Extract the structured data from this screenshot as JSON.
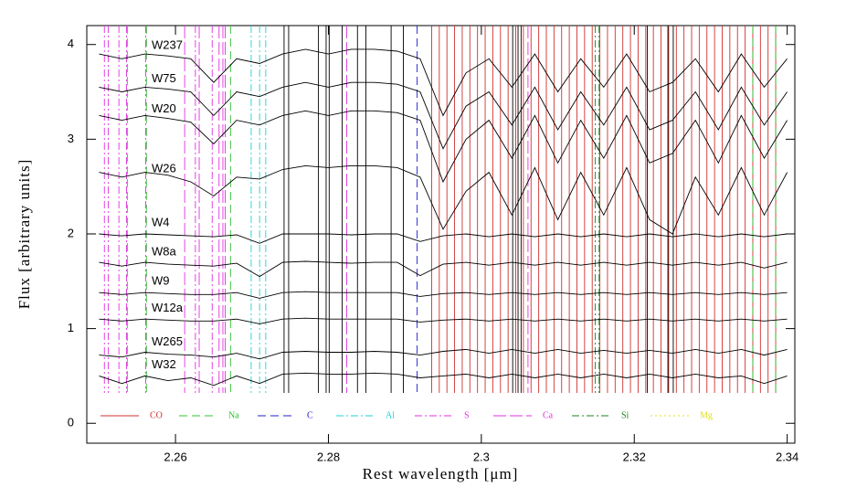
{
  "chart_data": {
    "type": "line",
    "xlabel": "Rest wavelength [μm]",
    "ylabel": "Flux [arbitrary units]",
    "xlim": [
      2.2484,
      2.341
    ],
    "ylim": [
      -0.21,
      4.2
    ],
    "xticks": [
      2.26,
      2.28,
      2.3,
      2.32,
      2.34
    ],
    "yticks": [
      0,
      1,
      2,
      3,
      4
    ],
    "x": [
      2.25,
      2.253,
      2.256,
      2.259,
      2.262,
      2.265,
      2.268,
      2.271,
      2.274,
      2.277,
      2.28,
      2.283,
      2.286,
      2.289,
      2.292,
      2.295,
      2.298,
      2.301,
      2.304,
      2.307,
      2.31,
      2.313,
      2.316,
      2.319,
      2.322,
      2.325,
      2.328,
      2.331,
      2.334,
      2.337,
      2.34
    ],
    "series": [
      {
        "name": "W237",
        "color": "#000000",
        "values": [
          3.9,
          3.85,
          3.9,
          3.88,
          3.85,
          3.6,
          3.85,
          3.8,
          3.9,
          3.95,
          3.9,
          3.95,
          3.95,
          3.93,
          3.85,
          3.25,
          3.7,
          3.85,
          3.55,
          3.9,
          3.5,
          3.85,
          3.55,
          3.9,
          3.5,
          3.6,
          3.85,
          3.5,
          3.9,
          3.55,
          3.85
        ]
      },
      {
        "name": "W75",
        "color": "#000000",
        "values": [
          3.55,
          3.5,
          3.55,
          3.53,
          3.5,
          3.25,
          3.5,
          3.45,
          3.55,
          3.6,
          3.55,
          3.6,
          3.6,
          3.58,
          3.5,
          2.9,
          3.35,
          3.5,
          3.15,
          3.55,
          3.1,
          3.5,
          3.15,
          3.55,
          3.1,
          3.2,
          3.5,
          3.1,
          3.55,
          3.15,
          3.5
        ]
      },
      {
        "name": "W20",
        "color": "#000000",
        "values": [
          3.25,
          3.2,
          3.25,
          3.22,
          3.18,
          2.95,
          3.2,
          3.15,
          3.25,
          3.3,
          3.25,
          3.3,
          3.3,
          3.28,
          3.2,
          2.55,
          3.0,
          3.2,
          2.8,
          3.25,
          2.75,
          3.2,
          2.8,
          3.25,
          2.75,
          2.85,
          3.2,
          2.75,
          3.25,
          2.8,
          3.2
        ]
      },
      {
        "name": "W26",
        "color": "#000000",
        "values": [
          2.65,
          2.6,
          2.65,
          2.62,
          2.55,
          2.4,
          2.6,
          2.58,
          2.68,
          2.72,
          2.7,
          2.72,
          2.72,
          2.7,
          2.6,
          2.05,
          2.45,
          2.65,
          2.2,
          2.7,
          2.15,
          2.65,
          2.2,
          2.7,
          2.15,
          2.0,
          2.6,
          2.2,
          2.7,
          2.2,
          2.65
        ]
      },
      {
        "name": "W4",
        "color": "#000000",
        "values": [
          2.0,
          1.98,
          2.0,
          1.99,
          1.98,
          1.97,
          1.99,
          1.9,
          2.0,
          2.0,
          2.0,
          1.99,
          2.0,
          2.0,
          1.92,
          1.98,
          2.0,
          1.97,
          2.0,
          1.97,
          2.0,
          1.97,
          2.0,
          1.97,
          2.0,
          1.97,
          2.0,
          1.97,
          2.0,
          1.97,
          2.0
        ]
      },
      {
        "name": "W8a",
        "color": "#000000",
        "values": [
          1.7,
          1.66,
          1.7,
          1.68,
          1.67,
          1.66,
          1.69,
          1.55,
          1.7,
          1.71,
          1.7,
          1.69,
          1.7,
          1.7,
          1.56,
          1.68,
          1.7,
          1.67,
          1.7,
          1.67,
          1.7,
          1.67,
          1.7,
          1.67,
          1.7,
          1.67,
          1.7,
          1.67,
          1.7,
          1.64,
          1.7
        ]
      },
      {
        "name": "W9",
        "color": "#000000",
        "values": [
          1.38,
          1.36,
          1.38,
          1.37,
          1.36,
          1.36,
          1.38,
          1.32,
          1.38,
          1.39,
          1.38,
          1.38,
          1.38,
          1.38,
          1.34,
          1.37,
          1.38,
          1.36,
          1.38,
          1.36,
          1.38,
          1.36,
          1.38,
          1.36,
          1.38,
          1.36,
          1.38,
          1.36,
          1.38,
          1.36,
          1.38
        ]
      },
      {
        "name": "W12a",
        "color": "#000000",
        "values": [
          1.1,
          1.08,
          1.1,
          1.09,
          1.08,
          1.08,
          1.1,
          1.05,
          1.1,
          1.11,
          1.1,
          1.1,
          1.1,
          1.1,
          1.07,
          1.09,
          1.1,
          1.08,
          1.1,
          1.08,
          1.1,
          1.08,
          1.1,
          1.08,
          1.1,
          1.08,
          1.1,
          1.08,
          1.1,
          1.08,
          1.1
        ]
      },
      {
        "name": "W265",
        "color": "#000000",
        "values": [
          0.72,
          0.7,
          0.75,
          0.73,
          0.72,
          0.7,
          0.74,
          0.68,
          0.75,
          0.76,
          0.75,
          0.75,
          0.76,
          0.75,
          0.72,
          0.76,
          0.78,
          0.74,
          0.78,
          0.74,
          0.78,
          0.74,
          0.77,
          0.74,
          0.77,
          0.74,
          0.78,
          0.74,
          0.78,
          0.72,
          0.78
        ]
      },
      {
        "name": "W32",
        "color": "#000000",
        "values": [
          0.5,
          0.42,
          0.5,
          0.45,
          0.48,
          0.4,
          0.5,
          0.42,
          0.52,
          0.53,
          0.52,
          0.52,
          0.53,
          0.52,
          0.48,
          0.5,
          0.52,
          0.48,
          0.52,
          0.48,
          0.52,
          0.48,
          0.52,
          0.48,
          0.52,
          0.48,
          0.52,
          0.48,
          0.5,
          0.42,
          0.5
        ]
      }
    ],
    "line_ids": [
      {
        "name": "CO",
        "color": "#d03030",
        "linestyle": "solid",
        "positions": [
          2.2935,
          2.2945,
          2.2955,
          2.2965,
          2.2975,
          2.2985,
          2.2995,
          2.3005,
          2.3015,
          2.3025,
          2.3035,
          2.3045,
          2.3055,
          2.3065,
          2.3075,
          2.3085,
          2.3095,
          2.3105,
          2.3115,
          2.3125,
          2.3135,
          2.3145,
          2.3155,
          2.3165,
          2.3175,
          2.3185,
          2.3195,
          2.3205,
          2.3215,
          2.3225,
          2.3235,
          2.3245,
          2.3255,
          2.3265,
          2.3275,
          2.3285,
          2.3295,
          2.3305,
          2.3315,
          2.3325,
          2.3335,
          2.3345,
          2.3355,
          2.3365,
          2.3375,
          2.3385
        ]
      },
      {
        "name": "Na",
        "color": "#30c030",
        "linestyle": "dashed",
        "positions": [
          2.2537,
          2.2562,
          2.2672,
          2.3355,
          2.3385
        ]
      },
      {
        "name": "C",
        "color": "#2020d0",
        "linestyle": "dashed",
        "positions": [
          2.2916
        ]
      },
      {
        "name": "Al",
        "color": "#20d0d0",
        "linestyle": "dashdot",
        "positions": [
          2.2699,
          2.271,
          2.2718
        ]
      },
      {
        "name": "S",
        "color": "#e030e0",
        "linestyle": "dashdot",
        "positions": [
          2.2507,
          2.2512,
          2.2526,
          2.2536,
          2.2561,
          2.2626,
          2.2648
        ]
      },
      {
        "name": "Ca",
        "color": "#e030e0",
        "linestyle": "longdash",
        "positions": [
          2.2612,
          2.2631,
          2.2657,
          2.2662,
          2.2665,
          2.2824,
          2.3061
        ]
      },
      {
        "name": "Si",
        "color": "#208020",
        "linestyle": "dashdot",
        "positions": [
          2.3149,
          2.3154
        ]
      },
      {
        "name": "Mg",
        "color": "#e0e020",
        "linestyle": "dotted",
        "positions": []
      },
      {
        "color": "#000000",
        "linestyle": "solid",
        "positions": [
          2.2742,
          2.2748,
          2.2787,
          2.2797,
          2.2801,
          2.2818,
          2.2838,
          2.2849,
          2.2882,
          2.2898,
          2.3041,
          2.3048,
          2.3052,
          2.3217,
          2.3244,
          2.3251
        ]
      }
    ]
  }
}
